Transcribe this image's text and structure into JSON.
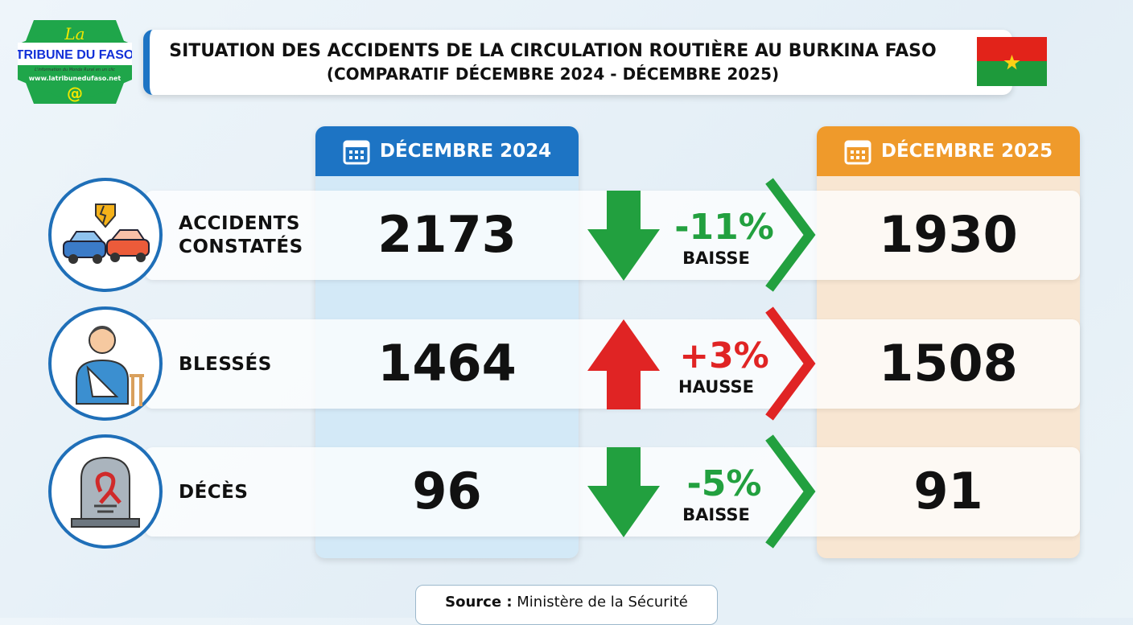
{
  "logo": {
    "top": "La",
    "name": "TRIBUNE DU FASO",
    "tagline": "L'information du Monde Rural en un clic",
    "url": "www.latribunedufaso.net",
    "at": "@"
  },
  "header": {
    "title": "SITUATION DES ACCIDENTS DE LA CIRCULATION ROUTIÈRE AU BURKINA FASO",
    "subtitle": "(COMPARATIF DÉCEMBRE 2024 - DÉCEMBRE 2025)"
  },
  "columns": {
    "y2024": "DÉCEMBRE 2024",
    "y2025": "DÉCEMBRE 2025",
    "icon": "calendar-icon"
  },
  "colors": {
    "blue": "#1d74c4",
    "orange": "#ef9a2b",
    "down": "#22a03f",
    "up": "#e02424"
  },
  "rows": [
    {
      "label_1": "ACCIDENTS",
      "label_2": "CONSTATÉS",
      "icon": "car-crash-icon",
      "v2024": "2173",
      "v2025": "1930",
      "pct": "-11%",
      "trend": "BAISSE",
      "direction": "down"
    },
    {
      "label_1": "BLESSÉS",
      "label_2": "",
      "icon": "injured-person-icon",
      "v2024": "1464",
      "v2025": "1508",
      "pct": "+3%",
      "trend": "HAUSSE",
      "direction": "up"
    },
    {
      "label_1": "DÉCÈS",
      "label_2": "",
      "icon": "tombstone-icon",
      "v2024": "96",
      "v2025": "91",
      "pct": "-5%",
      "trend": "BAISSE",
      "direction": "down"
    }
  ],
  "source": {
    "label": "Source :",
    "value": "Ministère de la Sécurité"
  }
}
